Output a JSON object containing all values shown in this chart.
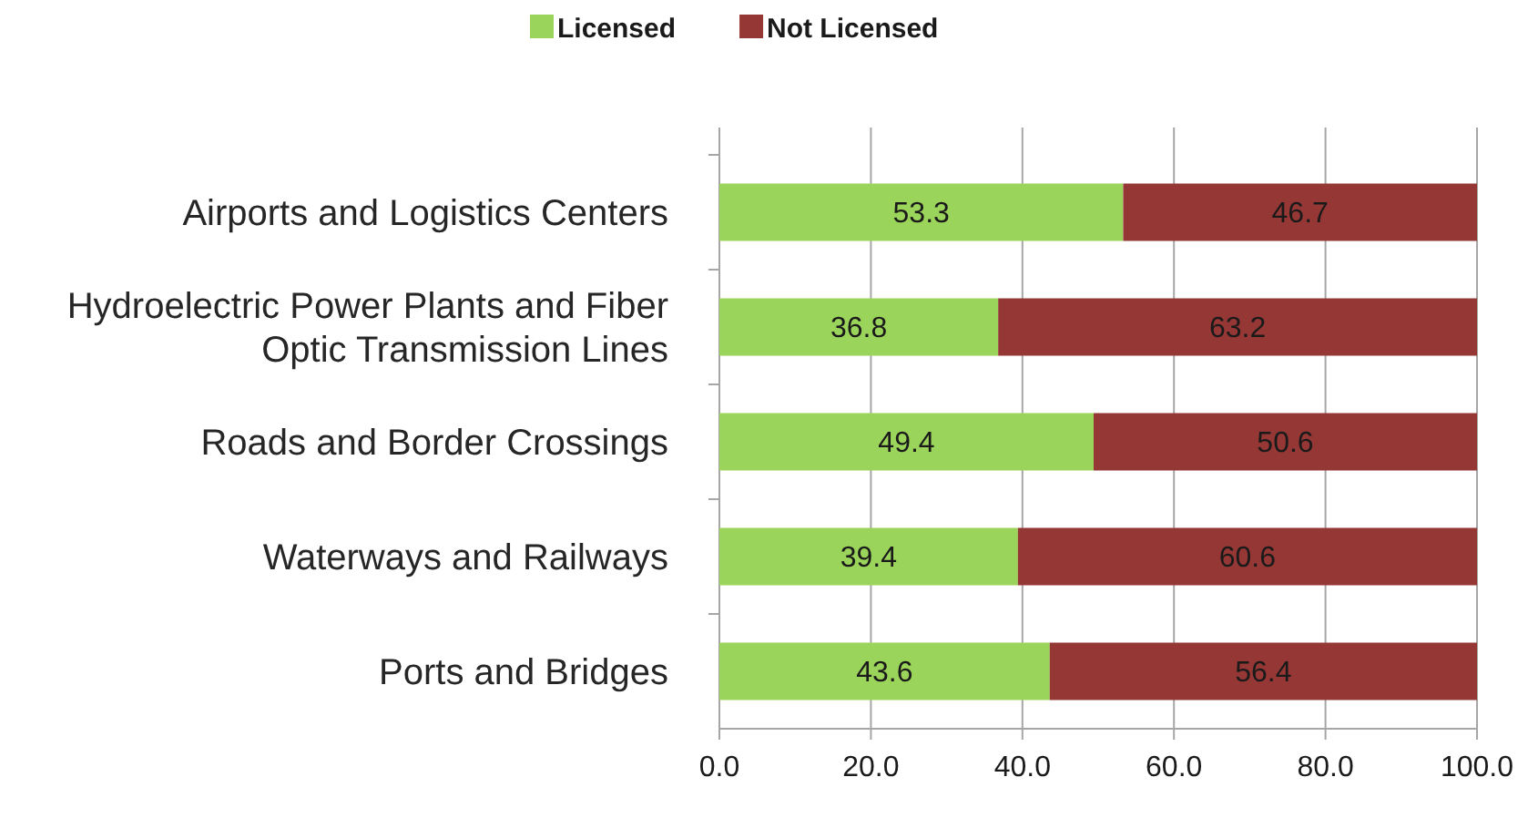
{
  "chart_data": {
    "type": "bar",
    "orientation": "horizontal",
    "stacked": true,
    "categories": [
      "Airports and Logistics Centers",
      "Hydroelectric Power Plants and Fiber Optic Transmission Lines",
      "Roads and Border Crossings",
      "Waterways and Railways",
      "Ports and Bridges"
    ],
    "series": [
      {
        "name": "Licensed",
        "color": "#9bd45a",
        "values": [
          53.3,
          36.8,
          49.4,
          39.4,
          43.6
        ]
      },
      {
        "name": "Not Licensed",
        "color": "#953735",
        "values": [
          46.7,
          63.2,
          50.6,
          60.6,
          56.4
        ]
      }
    ],
    "xlim": [
      0,
      100
    ],
    "xticks": [
      {
        "value": 0,
        "label": "0.0"
      },
      {
        "value": 20,
        "label": "20.0"
      },
      {
        "value": 40,
        "label": "40.0"
      },
      {
        "value": 60,
        "label": "60.0"
      },
      {
        "value": 80,
        "label": "80.0"
      },
      {
        "value": 100,
        "label": "100.0"
      }
    ],
    "grid": "x",
    "legend": "top",
    "data_labels": true
  }
}
